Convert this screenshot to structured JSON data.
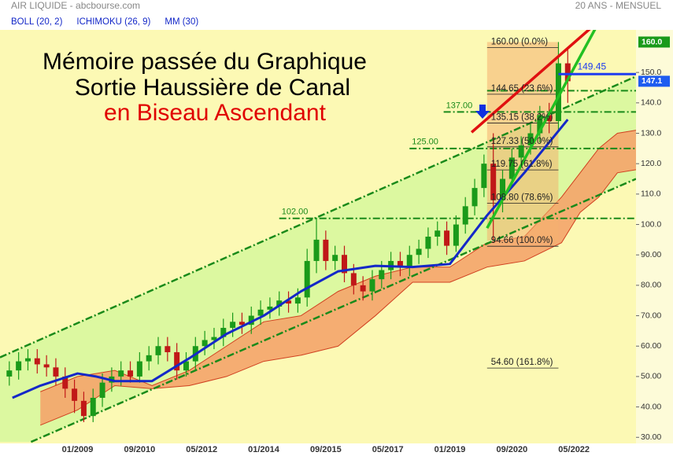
{
  "chart_data": {
    "type": "candlestick",
    "title": "AIR LIQUIDE - abcbourse.com",
    "subtitle": "20 ANS - MENSUEL",
    "annotation": [
      {
        "text": "Mémoire passée du Graphique",
        "color": "#000000"
      },
      {
        "text": "Sortie Haussière de Canal",
        "color": "#000000"
      },
      {
        "text": "en Biseau Ascendant",
        "color": "#e00000"
      }
    ],
    "up_color": "#1a9a1a",
    "down_color": "#c01818",
    "x": [
      "03/2007",
      "06/2007",
      "09/2007",
      "12/2007",
      "03/2008",
      "06/2008",
      "09/2008",
      "12/2008",
      "03/2009",
      "06/2009",
      "09/2009",
      "12/2009",
      "03/2010",
      "06/2010",
      "09/2010",
      "12/2010",
      "03/2011",
      "06/2011",
      "09/2011",
      "12/2011",
      "03/2012",
      "06/2012",
      "09/2012",
      "12/2012",
      "03/2013",
      "06/2013",
      "09/2013",
      "12/2013",
      "03/2014",
      "06/2014",
      "09/2014",
      "12/2014",
      "03/2015",
      "06/2015",
      "09/2015",
      "12/2015",
      "03/2016",
      "06/2016",
      "09/2016",
      "12/2016",
      "03/2017",
      "06/2017",
      "09/2017",
      "12/2017",
      "03/2018",
      "06/2018",
      "09/2018",
      "12/2018",
      "03/2019",
      "06/2019",
      "09/2019",
      "12/2019",
      "03/2020",
      "06/2020",
      "09/2020",
      "12/2020",
      "03/2021",
      "06/2021",
      "09/2021",
      "12/2021",
      "03/2022"
    ],
    "open": [
      50,
      52,
      55,
      56,
      54,
      53,
      50,
      46,
      42,
      37,
      43,
      48,
      50,
      52,
      50,
      55,
      57,
      60,
      58,
      52,
      55,
      60,
      62,
      63,
      66,
      68,
      67,
      70,
      72,
      73,
      75,
      74,
      76,
      88,
      95,
      88,
      90,
      84,
      80,
      78,
      82,
      85,
      88,
      86,
      90,
      92,
      96,
      98,
      93,
      100,
      106,
      112,
      120,
      108,
      115,
      122,
      126,
      130,
      136,
      134,
      153
    ],
    "high": [
      55,
      58,
      59,
      59,
      57,
      56,
      53,
      49,
      45,
      46,
      51,
      53,
      55,
      55,
      58,
      60,
      63,
      63,
      61,
      58,
      63,
      65,
      66,
      69,
      71,
      71,
      73,
      75,
      76,
      78,
      78,
      79,
      92,
      102,
      98,
      93,
      93,
      87,
      83,
      85,
      88,
      91,
      91,
      93,
      95,
      99,
      101,
      101,
      103,
      109,
      115,
      123,
      130,
      118,
      125,
      129,
      133,
      139,
      140,
      160,
      158
    ],
    "low": [
      47,
      49,
      52,
      51,
      50,
      47,
      43,
      38,
      35,
      35,
      40,
      45,
      47,
      48,
      48,
      52,
      54,
      55,
      49,
      50,
      52,
      57,
      59,
      60,
      63,
      64,
      64,
      67,
      69,
      70,
      71,
      71,
      73,
      84,
      85,
      85,
      81,
      77,
      75,
      75,
      79,
      82,
      83,
      83,
      87,
      89,
      93,
      90,
      91,
      97,
      103,
      109,
      94.66,
      104,
      112,
      119,
      123,
      127,
      130,
      131,
      140
    ],
    "close": [
      52,
      55,
      56,
      54,
      53,
      50,
      46,
      42,
      37,
      43,
      48,
      50,
      52,
      50,
      55,
      57,
      60,
      58,
      52,
      55,
      60,
      62,
      63,
      66,
      68,
      67,
      70,
      72,
      73,
      75,
      74,
      76,
      88,
      95,
      88,
      90,
      84,
      80,
      78,
      82,
      85,
      88,
      86,
      90,
      92,
      96,
      98,
      93,
      100,
      106,
      112,
      120,
      108,
      115,
      122,
      126,
      130,
      136,
      134,
      153,
      147.1
    ],
    "xlim": [
      "12/2006",
      "01/2024"
    ],
    "xticks": [
      "01/2009",
      "09/2010",
      "05/2012",
      "01/2014",
      "09/2015",
      "05/2017",
      "01/2019",
      "09/2020",
      "05/2022"
    ],
    "ylim": [
      28,
      164
    ],
    "yticks": [
      {
        "value": 30,
        "label": "30.00"
      },
      {
        "value": 40,
        "label": "40.00"
      },
      {
        "value": 50,
        "label": "50.00"
      },
      {
        "value": 60,
        "label": "60.00"
      },
      {
        "value": 70,
        "label": "70.00"
      },
      {
        "value": 80,
        "label": "80.00"
      },
      {
        "value": 90,
        "label": "90.00"
      },
      {
        "value": 100,
        "label": "100.0"
      },
      {
        "value": 110,
        "label": "110.0"
      },
      {
        "value": 120,
        "label": "120.0"
      },
      {
        "value": 130,
        "label": "130.0"
      },
      {
        "value": 140,
        "label": "140.0"
      },
      {
        "value": 150,
        "label": "150.0"
      }
    ],
    "indicators": [
      {
        "name": "BOLL (20, 2)",
        "color": "#1428c8"
      },
      {
        "name": "ICHIMOKU (26, 9)",
        "color": "#1428c8",
        "x": [
          "01/2008",
          "01/2009",
          "01/2010",
          "01/2011",
          "01/2012",
          "01/2013",
          "01/2014",
          "01/2015",
          "01/2016",
          "01/2017",
          "01/2018",
          "01/2019",
          "01/2020",
          "01/2021",
          "01/2022",
          "07/2022",
          "01/2023",
          "07/2023",
          "01/2024"
        ],
        "span_a": [
          45,
          50,
          52,
          47,
          52,
          60,
          68,
          70,
          78,
          83,
          86,
          86,
          94,
          96,
          109,
          117,
          125,
          130,
          131
        ],
        "span_b": [
          34,
          39,
          47,
          46,
          47,
          50,
          55,
          57,
          60,
          70,
          81,
          81,
          86,
          88,
          94,
          104,
          109,
          117,
          118
        ],
        "fill": "#f4a46a",
        "border": "#d04020"
      },
      {
        "name": "MM (30)",
        "color": "#1428c8",
        "x": [
          "04/2007",
          "01/2008",
          "01/2009",
          "07/2009",
          "01/2010",
          "01/2011",
          "01/2012",
          "01/2013",
          "01/2014",
          "01/2015",
          "01/2016",
          "01/2017",
          "01/2018",
          "01/2019",
          "01/2020",
          "01/2021",
          "03/2022"
        ],
        "values": [
          43,
          47,
          51,
          50,
          48.5,
          48.5,
          56,
          64,
          70,
          78,
          84.6,
          86.4,
          86,
          87,
          103,
          117,
          134.5
        ]
      }
    ],
    "channel": {
      "color": "#1a8a1a",
      "fill": "#dcf8a0",
      "lines": [
        {
          "x": [
            "12/2006",
            "01/2024"
          ],
          "values": [
            56.3,
            148.7
          ]
        },
        {
          "x": [
            "10/2007",
            "01/2024"
          ],
          "values": [
            28.5,
            115
          ]
        }
      ]
    },
    "levels": {
      "color": "#1a8a1a",
      "items": [
        {
          "value": 102,
          "label": "102.00",
          "start": "06/2014"
        },
        {
          "value": 125,
          "label": "125.00",
          "start": "12/2017"
        },
        {
          "value": 137,
          "label": "137.00",
          "start": "11/2018"
        },
        {
          "value": 144,
          "start": "01/2020"
        }
      ]
    },
    "resistance": {
      "value": 149.45,
      "label": "149.45",
      "start": "12/2021",
      "color": "#1e3cf0"
    },
    "wedge": [
      {
        "x": [
          "08/2019",
          "12/2022"
        ],
        "values": [
          130.3,
          166
        ],
        "color": "#e01010"
      },
      {
        "x": [
          "01/2020",
          "01/2023"
        ],
        "values": [
          98.8,
          166.5
        ],
        "color": "#22c022"
      }
    ],
    "fibonacci": {
      "start": "01/2020",
      "end": "12/2021",
      "fill": "#f4b070",
      "levels": [
        {
          "value": 160,
          "label": "160.00 (0.0%)"
        },
        {
          "value": 144.65,
          "label": "144.65 (23.6%)"
        },
        {
          "value": 135.15,
          "label": "135.15 (38.2%)"
        },
        {
          "value": 127.33,
          "label": "127.33 (50.0%)"
        },
        {
          "value": 119.75,
          "label": "119.75 (61.8%)"
        },
        {
          "value": 108.8,
          "label": "108.80 (78.6%)"
        },
        {
          "value": 94.66,
          "label": "94.66 (100.0%)"
        },
        {
          "value": 54.6,
          "label": "54.60 (161.8%)"
        }
      ]
    },
    "price_tags": [
      {
        "value": 160,
        "label": "160.0",
        "color": "#1a9a1a"
      },
      {
        "value": 147.1,
        "label": "147.1",
        "color": "#1e5cf0"
      }
    ]
  }
}
